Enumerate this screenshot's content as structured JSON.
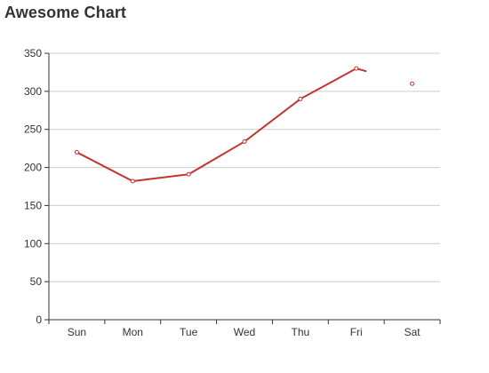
{
  "chart_data": {
    "type": "line",
    "title": "Awesome Chart",
    "categories": [
      "Sun",
      "Mon",
      "Tue",
      "Wed",
      "Thu",
      "Fri",
      "Sat"
    ],
    "series": [
      {
        "values": [
          220,
          182,
          191,
          234,
          290,
          330,
          310
        ],
        "color": "#c23531"
      }
    ],
    "ylim": [
      0,
      350
    ],
    "yticks": [
      0,
      50,
      100,
      150,
      200,
      250,
      300,
      350
    ],
    "grid": true
  }
}
